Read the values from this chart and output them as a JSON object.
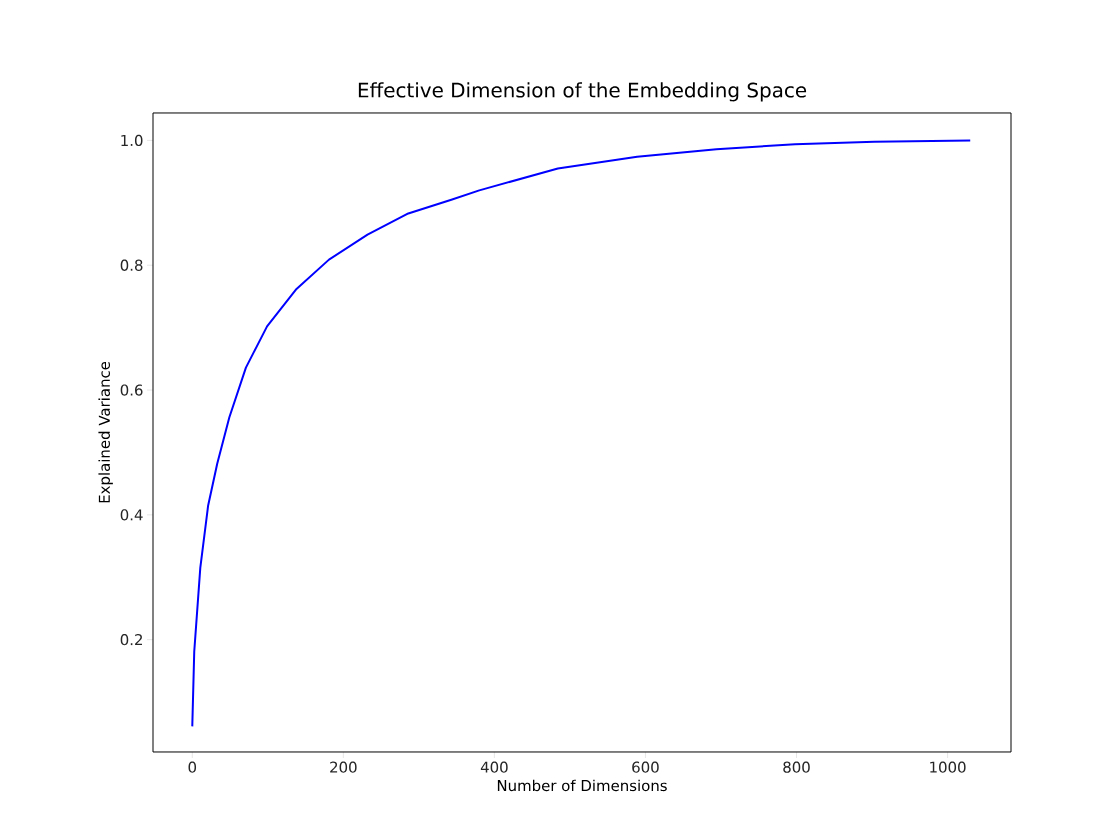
{
  "chart_data": {
    "type": "line",
    "title": "Effective Dimension of the Embedding Space",
    "xlabel": "Number of Dimensions",
    "ylabel": "Explained Variance",
    "x": [
      0,
      2.6,
      10.6,
      21,
      33,
      49,
      71,
      99,
      138,
      181,
      232,
      286,
      343,
      380,
      484,
      589,
      694,
      798,
      903,
      1030
    ],
    "values": [
      0.061,
      0.181,
      0.315,
      0.415,
      0.482,
      0.556,
      0.636,
      0.702,
      0.762,
      0.809,
      0.849,
      0.883,
      0.905,
      0.92,
      0.955,
      0.974,
      0.986,
      0.994,
      0.998,
      1.0
    ],
    "color": "#0000ff",
    "line_style": "solid",
    "marker": "none",
    "xlim": [
      -52,
      1084
    ],
    "ylim": [
      0.02,
      1.044
    ],
    "xticks": [
      0,
      200,
      400,
      600,
      800,
      1000
    ],
    "yticks": [
      0.2,
      0.4,
      0.6,
      0.8,
      {
        "value": 1.0,
        "label": "1.0"
      }
    ]
  }
}
